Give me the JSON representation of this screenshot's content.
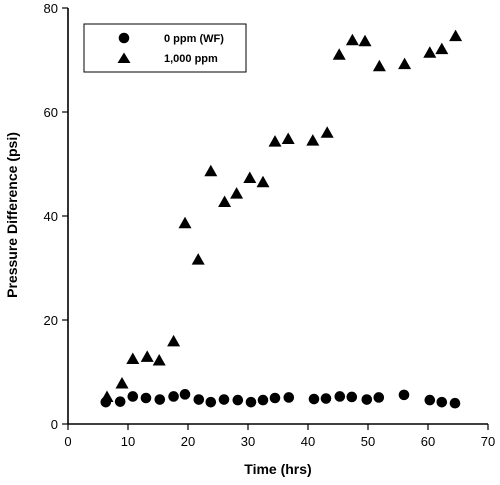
{
  "chart_data": {
    "type": "scatter",
    "xlabel": "Time (hrs)",
    "ylabel": "Pressure Difference (psi)",
    "xlim": [
      0,
      70
    ],
    "ylim": [
      0,
      80
    ],
    "x_ticks": [
      "0",
      "10",
      "20",
      "30",
      "40",
      "50",
      "60",
      "70"
    ],
    "y_ticks": [
      "0",
      "20",
      "40",
      "60",
      "80"
    ],
    "grid": false,
    "legend_position": "top-left",
    "series": [
      {
        "name": "0 ppm (WF)",
        "marker": "circle",
        "color": "#000000",
        "points": [
          [
            6.3,
            4.2
          ],
          [
            8.7,
            4.3
          ],
          [
            10.8,
            5.3
          ],
          [
            13.0,
            5.0
          ],
          [
            15.3,
            4.7
          ],
          [
            17.6,
            5.3
          ],
          [
            19.5,
            5.7
          ],
          [
            21.8,
            4.7
          ],
          [
            23.8,
            4.2
          ],
          [
            26.0,
            4.7
          ],
          [
            28.3,
            4.6
          ],
          [
            30.5,
            4.2
          ],
          [
            32.5,
            4.6
          ],
          [
            34.5,
            5.0
          ],
          [
            36.8,
            5.1
          ],
          [
            41.0,
            4.8
          ],
          [
            43.0,
            4.9
          ],
          [
            45.3,
            5.3
          ],
          [
            47.3,
            5.2
          ],
          [
            49.8,
            4.7
          ],
          [
            51.8,
            5.1
          ],
          [
            56.0,
            5.6
          ],
          [
            60.3,
            4.6
          ],
          [
            62.3,
            4.2
          ],
          [
            64.5,
            4.0
          ]
        ]
      },
      {
        "name": "1,000 ppm",
        "marker": "triangle",
        "color": "#000000",
        "points": [
          [
            6.5,
            5.2
          ],
          [
            9.0,
            7.8
          ],
          [
            10.8,
            12.5
          ],
          [
            13.2,
            12.9
          ],
          [
            15.2,
            12.2
          ],
          [
            17.6,
            15.9
          ],
          [
            19.5,
            38.6
          ],
          [
            21.7,
            31.6
          ],
          [
            23.8,
            48.6
          ],
          [
            26.1,
            42.7
          ],
          [
            28.1,
            44.3
          ],
          [
            30.3,
            47.3
          ],
          [
            32.5,
            46.5
          ],
          [
            34.5,
            54.3
          ],
          [
            36.7,
            54.8
          ],
          [
            40.8,
            54.5
          ],
          [
            43.2,
            56.0
          ],
          [
            45.2,
            71.0
          ],
          [
            47.4,
            73.8
          ],
          [
            49.5,
            73.6
          ],
          [
            51.9,
            68.8
          ],
          [
            56.1,
            69.2
          ],
          [
            60.3,
            71.4
          ],
          [
            62.3,
            72.1
          ],
          [
            64.6,
            74.6
          ]
        ]
      }
    ]
  }
}
